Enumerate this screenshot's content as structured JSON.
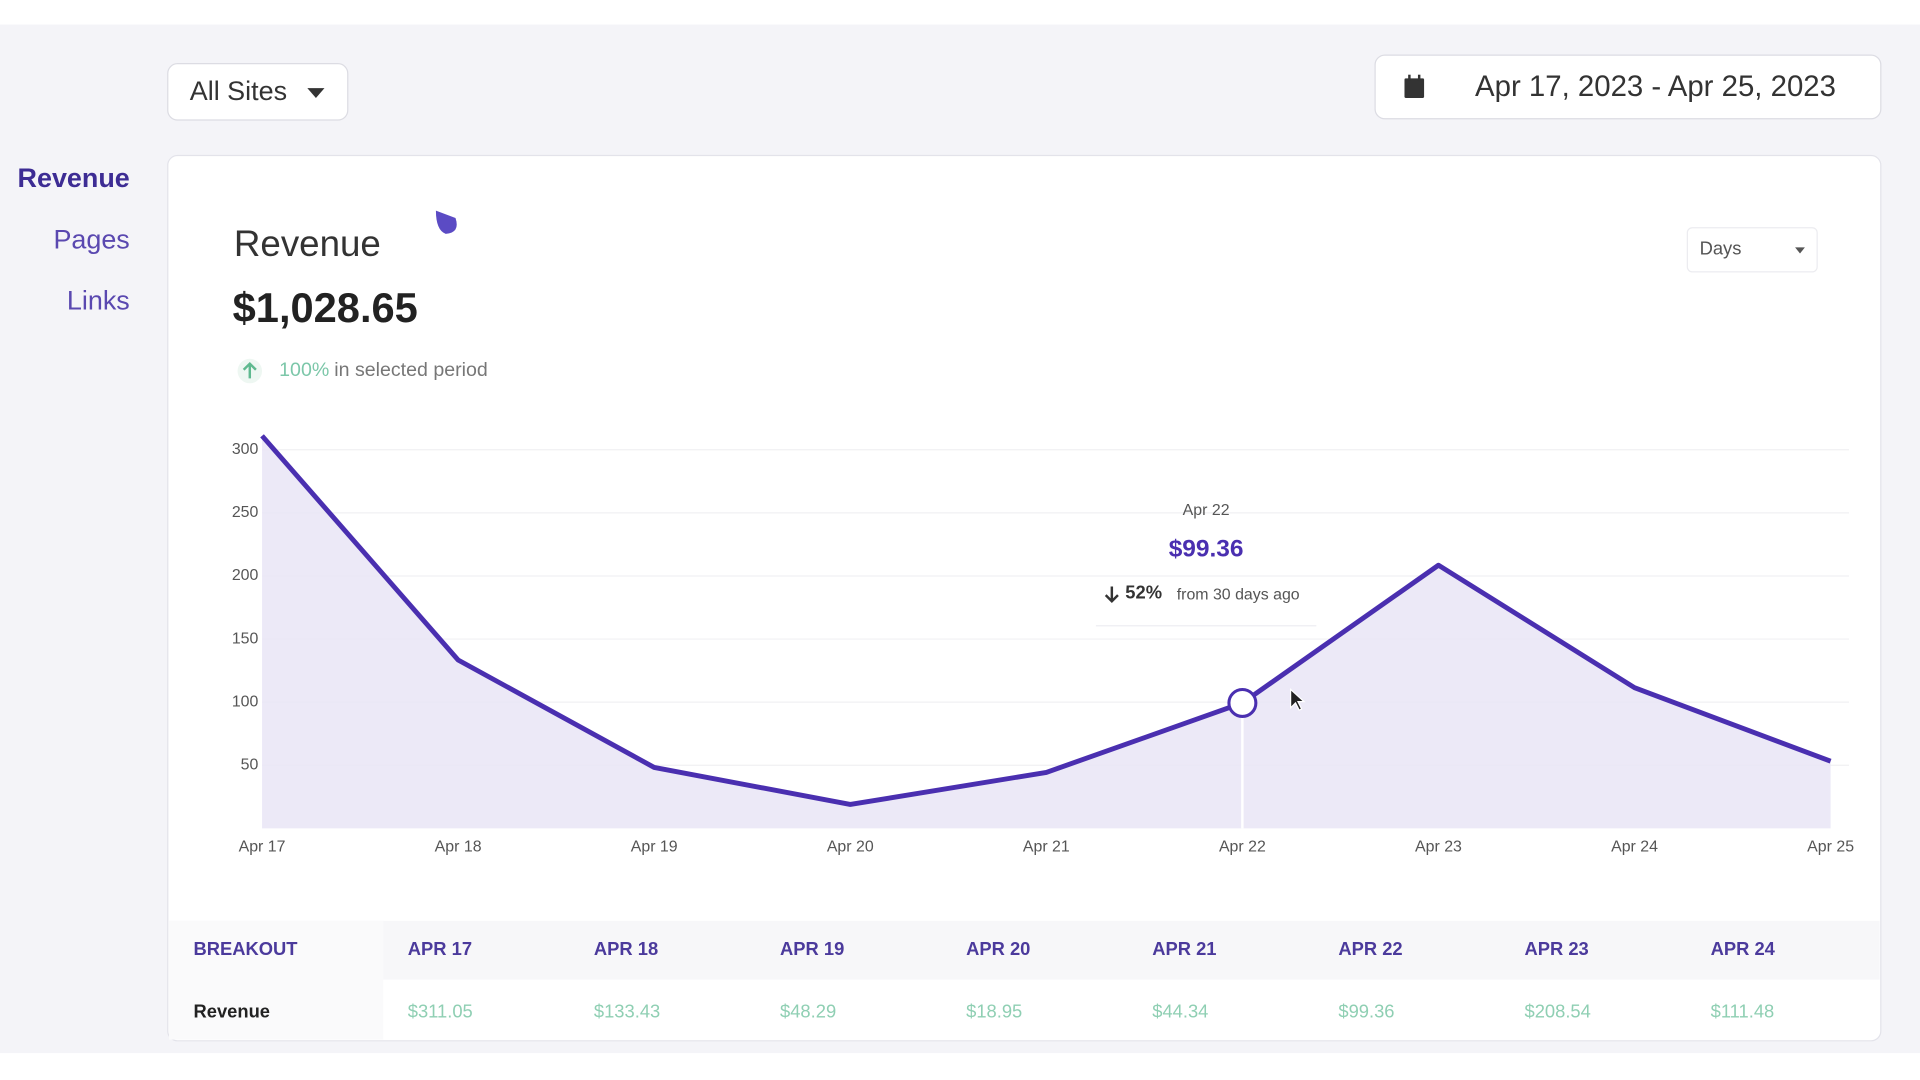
{
  "toolbar": {
    "site_select": "All Sites",
    "date_range": "Apr 17, 2023 - Apr 25, 2023"
  },
  "sidebar": {
    "items": [
      "Revenue",
      "Pages",
      "Links"
    ]
  },
  "card": {
    "title": "Revenue",
    "total": "$1,028.65",
    "change": "100%",
    "change_note": "in selected period",
    "interval_select": "Days"
  },
  "chart_data": {
    "type": "area",
    "categories": [
      "Apr 17",
      "Apr 18",
      "Apr 19",
      "Apr 20",
      "Apr 21",
      "Apr 22",
      "Apr 23",
      "Apr 24",
      "Apr 25"
    ],
    "series": [
      {
        "name": "Revenue",
        "color": "#4a2fb0",
        "values": [
          311.05,
          133.43,
          48.29,
          18.95,
          44.34,
          99.36,
          208.54,
          111.48,
          53.21
        ]
      }
    ],
    "ylim": [
      0,
      310
    ],
    "yticks": [
      50,
      100,
      150,
      200,
      250,
      300
    ],
    "grid": true
  },
  "tooltip": {
    "date": "Apr 22",
    "value": "$99.36",
    "change": "52%",
    "note": "from 30 days ago"
  },
  "table": {
    "header": [
      "BREAKOUT",
      "APR 17",
      "APR 18",
      "APR 19",
      "APR 20",
      "APR 21",
      "APR 22",
      "APR 23",
      "APR 24"
    ],
    "rows": [
      [
        "Revenue",
        "$311.05",
        "$133.43",
        "$48.29",
        "$18.95",
        "$44.34",
        "$99.36",
        "$208.54",
        "$111.48"
      ]
    ]
  }
}
